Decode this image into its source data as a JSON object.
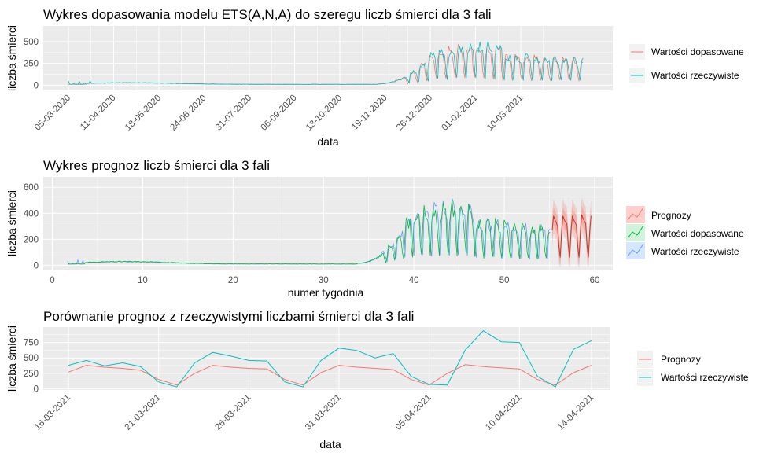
{
  "colors": {
    "red": "#F8766D",
    "cyan": "#00BFC4",
    "green": "#00BA38",
    "blue": "#619CFF",
    "panel": "#EBEBEB",
    "grid": "#FFFFFF"
  },
  "chart_data": [
    {
      "type": "line",
      "title": "Wykres dopasowania modelu ETS(A,N,A) do szeregu liczb śmierci dla 3 fali",
      "xlabel": "data",
      "ylabel": "liczba śmierci",
      "x_ticks": [
        "05-03-2020",
        "11-04-2020",
        "18-05-2020",
        "24-06-2020",
        "31-07-2020",
        "06-09-2020",
        "13-10-2020",
        "19-11-2020",
        "26-12-2020",
        "01-02-2021",
        "10-03-2021"
      ],
      "y_ticks": [
        "0",
        "250",
        "500"
      ],
      "ylim": [
        -60,
        680
      ],
      "legend_position": "right",
      "series": [
        {
          "name": "Wartości dopasowane",
          "color": "red"
        },
        {
          "name": "Wartości rzeczywiste",
          "color": "cyan"
        }
      ]
    },
    {
      "type": "line",
      "title": "Wykres prognoz liczb śmierci dla 3 fali",
      "xlabel": "numer tygodnia",
      "ylabel": "liczba śmierci",
      "x_ticks": [
        "0",
        "10",
        "20",
        "30",
        "40",
        "50",
        "60"
      ],
      "y_ticks": [
        "0",
        "200",
        "400",
        "600"
      ],
      "xlim": [
        -1,
        62
      ],
      "ylim": [
        -40,
        680
      ],
      "legend_position": "right",
      "series": [
        {
          "name": "Prognozy",
          "color": "red"
        },
        {
          "name": "Wartości dopasowane",
          "color": "green"
        },
        {
          "name": "Wartości rzeczywiste",
          "color": "blue"
        }
      ]
    },
    {
      "type": "line",
      "title": "Porównanie prognoz z rzeczywistymi liczbami śmierci dla 3 fali",
      "xlabel": "data",
      "ylabel": "liczba śmierci",
      "x_ticks": [
        "16-03-2021",
        "21-03-2021",
        "26-03-2021",
        "31-03-2021",
        "05-04-2021",
        "10-04-2021",
        "14-04-2021"
      ],
      "y_ticks": [
        "0",
        "250",
        "500",
        "750"
      ],
      "ylim": [
        -20,
        1000
      ],
      "legend_position": "right",
      "dates": [
        "16-03-2021",
        "17-03-2021",
        "18-03-2021",
        "19-03-2021",
        "20-03-2021",
        "21-03-2021",
        "22-03-2021",
        "23-03-2021",
        "24-03-2021",
        "25-03-2021",
        "26-03-2021",
        "27-03-2021",
        "28-03-2021",
        "29-03-2021",
        "30-03-2021",
        "31-03-2021",
        "01-04-2021",
        "02-04-2021",
        "03-04-2021",
        "04-04-2021",
        "05-04-2021",
        "06-04-2021",
        "07-04-2021",
        "08-04-2021",
        "09-04-2021",
        "10-04-2021",
        "11-04-2021",
        "12-04-2021",
        "13-04-2021",
        "14-04-2021"
      ],
      "series": [
        {
          "name": "Prognozy",
          "color": "red",
          "values": [
            270,
            380,
            350,
            330,
            300,
            150,
            60,
            250,
            380,
            350,
            330,
            320,
            150,
            60,
            260,
            380,
            350,
            330,
            310,
            150,
            60,
            250,
            390,
            360,
            340,
            320,
            150,
            60,
            260,
            380
          ]
        },
        {
          "name": "Wartości rzeczywiste",
          "color": "cyan",
          "values": [
            380,
            460,
            370,
            420,
            360,
            110,
            30,
            420,
            590,
            530,
            460,
            450,
            110,
            30,
            460,
            660,
            620,
            500,
            570,
            200,
            70,
            60,
            630,
            940,
            760,
            750,
            200,
            30,
            640,
            780
          ]
        }
      ]
    }
  ]
}
